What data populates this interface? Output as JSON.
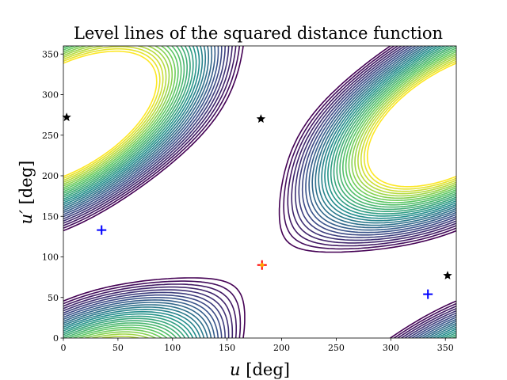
{
  "chart_data": {
    "type": "contour",
    "title": "Level lines of the squared distance function",
    "xlabel_var": "u",
    "xlabel_unit": " [deg]",
    "ylabel_var": "u′",
    "ylabel_unit": " [deg]",
    "xlim": [
      0,
      360
    ],
    "ylim": [
      0,
      360
    ],
    "x_ticks": [
      0,
      50,
      100,
      150,
      200,
      250,
      300,
      350
    ],
    "y_ticks": [
      0,
      50,
      100,
      150,
      200,
      250,
      300,
      350
    ],
    "colormap": [
      "#440154",
      "#3b528b",
      "#21918c",
      "#5ec962",
      "#fde725"
    ],
    "function": {
      "base": 0.9,
      "amp_cos_u": 0.5,
      "amp_cos_up": 0.5,
      "amp_cos_diff": 0.6,
      "min_u": 182,
      "min_up": 90,
      "level_min": 0.02,
      "level_max": 1.2,
      "n_levels": 28
    },
    "markers": [
      {
        "name": "minimum-marker",
        "symbol": "plus",
        "color": "#ff0000",
        "u": 182,
        "up": 90
      },
      {
        "name": "minimum-marker-dot",
        "symbol": "dot",
        "color": "#ffa500",
        "u": 182,
        "up": 90
      },
      {
        "name": "critical-plus-1",
        "symbol": "plus",
        "color": "#0000ff",
        "u": 35,
        "up": 133
      },
      {
        "name": "critical-plus-2",
        "symbol": "plus",
        "color": "#0000ff",
        "u": 334,
        "up": 54
      },
      {
        "name": "saddle-star-1",
        "symbol": "star",
        "color": "#000000",
        "u": 3,
        "up": 272
      },
      {
        "name": "saddle-star-2",
        "symbol": "star",
        "color": "#000000",
        "u": 181,
        "up": 270
      },
      {
        "name": "saddle-star-3",
        "symbol": "star",
        "color": "#000000",
        "u": 352,
        "up": 77
      }
    ]
  }
}
